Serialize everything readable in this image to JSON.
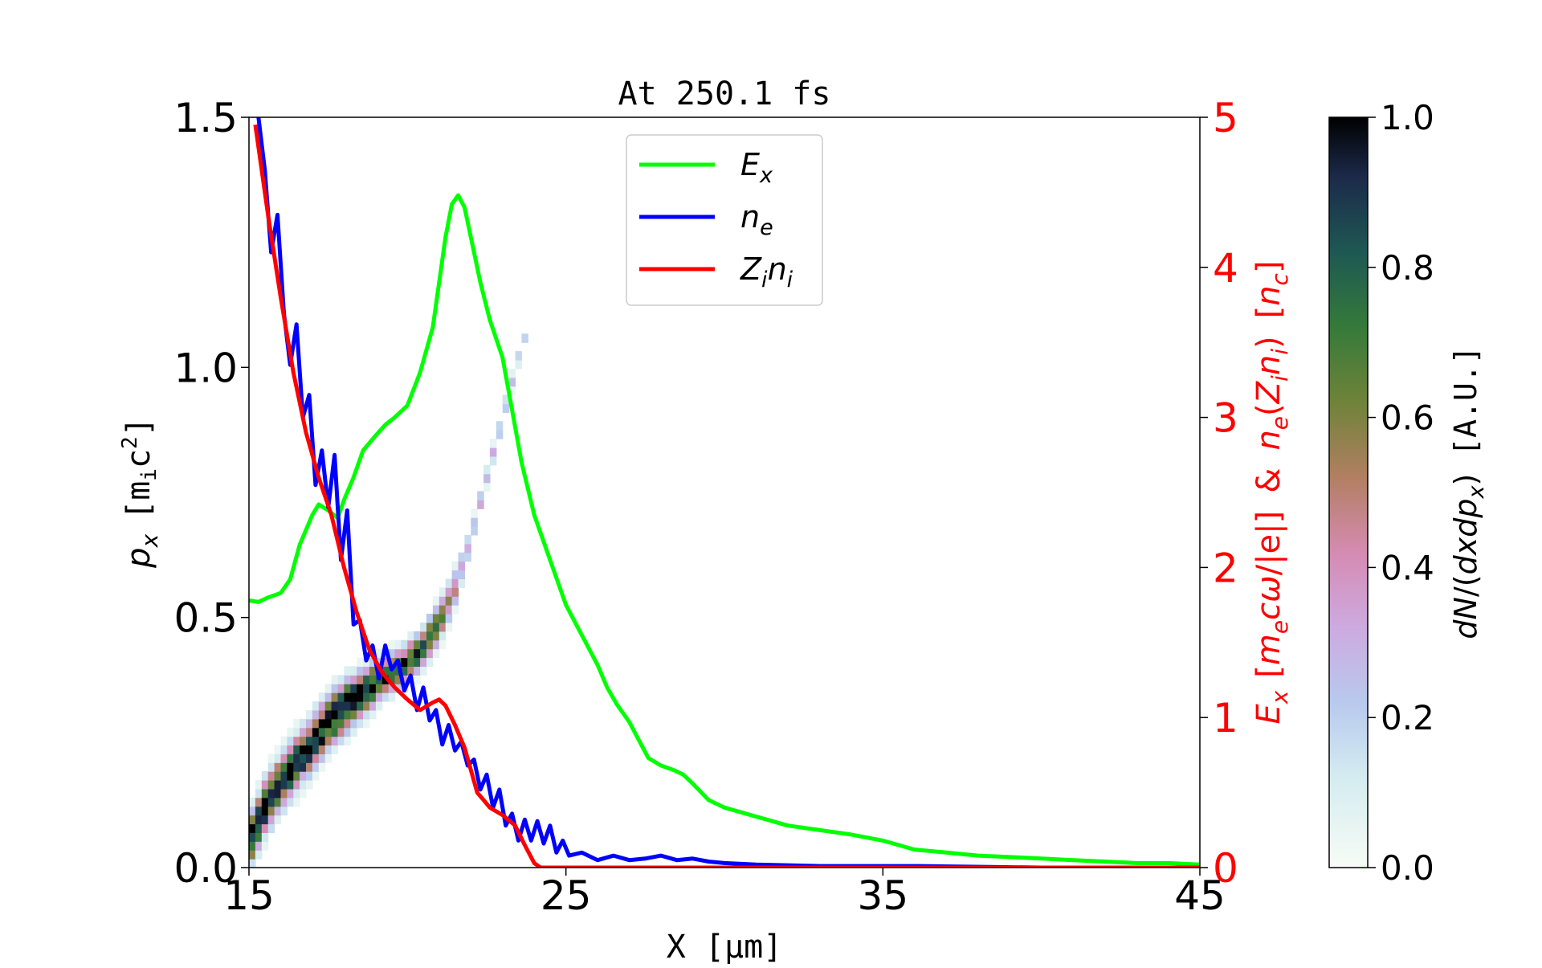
{
  "chart_data": {
    "type": "line",
    "title": "At 250.1 fs",
    "xlabel": "X [μm]",
    "ylabel_left": "p_x [m_ic^2]",
    "ylabel_right": "E_x [m_ecω/|e|] & n_e(Z_in_i) [n_c]",
    "colorbar_label": "dN/(dxdp_x) [A.U.]",
    "xlim": [
      15,
      45
    ],
    "ylim_left": [
      0,
      1.5
    ],
    "ylim_right": [
      0,
      5
    ],
    "colorbar_range": [
      0,
      1
    ],
    "x_ticks": [
      "15",
      "25",
      "35",
      "45"
    ],
    "y_ticks_left": [
      "0.0",
      "0.5",
      "1.0",
      "1.5"
    ],
    "y_ticks_right": [
      "0",
      "1",
      "2",
      "3",
      "4",
      "5"
    ],
    "colorbar_ticks": [
      "0.0",
      "0.2",
      "0.4",
      "0.6",
      "0.8",
      "1.0"
    ],
    "legend_position": "upper-center",
    "colors": {
      "Ex": "#00ff00",
      "ne": "#0000ff",
      "Zini": "#ff0000",
      "right_axis": "#ff0000"
    },
    "series": [
      {
        "key": "Ex",
        "name": "E_x",
        "axis": "right",
        "x": [
          15.0,
          15.3,
          15.6,
          16.0,
          16.3,
          16.6,
          17.0,
          17.2,
          17.5,
          17.8,
          18.0,
          18.3,
          18.6,
          19.0,
          19.3,
          19.6,
          20.0,
          20.4,
          20.8,
          21.0,
          21.2,
          21.4,
          21.6,
          21.8,
          22.0,
          22.3,
          22.6,
          23.0,
          23.3,
          23.6,
          24.0,
          24.5,
          25.0,
          25.5,
          26.0,
          26.3,
          26.6,
          27.0,
          27.3,
          27.6,
          28.0,
          28.4,
          28.7,
          29.0,
          29.5,
          30.0,
          31.0,
          32.0,
          33.0,
          34.0,
          35.0,
          36.0,
          37.0,
          38.0,
          39.0,
          40.0,
          41.0,
          42.0,
          43.0,
          44.0,
          45.0
        ],
        "y": [
          1.78,
          1.77,
          1.8,
          1.83,
          1.92,
          2.15,
          2.35,
          2.42,
          2.38,
          2.33,
          2.45,
          2.6,
          2.78,
          2.88,
          2.95,
          3.0,
          3.08,
          3.3,
          3.6,
          3.9,
          4.2,
          4.42,
          4.48,
          4.4,
          4.2,
          3.9,
          3.65,
          3.4,
          3.05,
          2.7,
          2.35,
          2.05,
          1.75,
          1.55,
          1.35,
          1.2,
          1.09,
          0.97,
          0.85,
          0.73,
          0.68,
          0.65,
          0.62,
          0.56,
          0.45,
          0.4,
          0.34,
          0.28,
          0.25,
          0.22,
          0.18,
          0.12,
          0.1,
          0.08,
          0.07,
          0.06,
          0.05,
          0.04,
          0.03,
          0.03,
          0.02
        ]
      },
      {
        "key": "ne",
        "name": "n_e",
        "axis": "right",
        "x": [
          15.3,
          15.5,
          15.7,
          15.9,
          16.1,
          16.3,
          16.5,
          16.7,
          16.9,
          17.1,
          17.3,
          17.5,
          17.7,
          17.9,
          18.1,
          18.3,
          18.5,
          18.7,
          18.9,
          19.1,
          19.3,
          19.5,
          19.7,
          19.9,
          20.1,
          20.3,
          20.5,
          20.7,
          20.9,
          21.1,
          21.3,
          21.5,
          21.7,
          21.9,
          22.1,
          22.3,
          22.5,
          22.7,
          22.9,
          23.1,
          23.3,
          23.5,
          23.7,
          23.9,
          24.1,
          24.3,
          24.5,
          24.7,
          24.9,
          25.1,
          25.5,
          26.0,
          26.5,
          27.0,
          27.5,
          28.0,
          28.5,
          29.0,
          29.5,
          30.0,
          31.0,
          33.0,
          36.0,
          40.0,
          45.0
        ],
        "y": [
          5.0,
          4.65,
          4.1,
          4.35,
          3.7,
          3.35,
          3.62,
          3.0,
          3.15,
          2.55,
          2.78,
          2.4,
          2.75,
          2.05,
          2.38,
          1.62,
          1.65,
          1.38,
          1.48,
          1.26,
          1.48,
          1.32,
          1.38,
          1.18,
          1.28,
          1.05,
          1.2,
          0.98,
          1.05,
          0.82,
          0.95,
          0.78,
          0.84,
          0.68,
          0.72,
          0.52,
          0.62,
          0.4,
          0.52,
          0.28,
          0.36,
          0.18,
          0.32,
          0.18,
          0.31,
          0.16,
          0.28,
          0.1,
          0.18,
          0.08,
          0.1,
          0.05,
          0.08,
          0.05,
          0.06,
          0.08,
          0.05,
          0.06,
          0.04,
          0.03,
          0.02,
          0.01,
          0.01,
          0.0,
          0.0
        ]
      },
      {
        "key": "Zini",
        "name": "Z_in_i",
        "axis": "right",
        "x": [
          15.2,
          15.6,
          16.0,
          16.4,
          16.8,
          17.2,
          17.6,
          18.0,
          18.4,
          18.8,
          19.2,
          19.6,
          20.0,
          20.4,
          20.8,
          21.0,
          21.2,
          21.5,
          21.8,
          22.0,
          22.2,
          22.4,
          22.6,
          23.0,
          23.4,
          23.7,
          24.0,
          24.2,
          25.0,
          30.0,
          35.0,
          40.0,
          45.0
        ],
        "y": [
          4.95,
          4.35,
          3.8,
          3.3,
          2.9,
          2.6,
          2.35,
          2.0,
          1.7,
          1.45,
          1.3,
          1.2,
          1.12,
          1.05,
          1.1,
          1.12,
          1.08,
          0.95,
          0.8,
          0.65,
          0.5,
          0.45,
          0.4,
          0.35,
          0.28,
          0.15,
          0.03,
          0.0,
          0.0,
          0.0,
          0.0,
          0.0,
          0.0
        ]
      }
    ],
    "phase_space": {
      "description_free": true,
      "ridge": [
        {
          "x": 15.0,
          "p": 0.05,
          "w": 0.05,
          "v": 1.0
        },
        {
          "x": 15.5,
          "p": 0.12,
          "w": 0.05,
          "v": 1.0
        },
        {
          "x": 16.0,
          "p": 0.17,
          "w": 0.05,
          "v": 1.0
        },
        {
          "x": 16.5,
          "p": 0.21,
          "w": 0.05,
          "v": 1.0
        },
        {
          "x": 17.0,
          "p": 0.25,
          "w": 0.05,
          "v": 1.0
        },
        {
          "x": 17.5,
          "p": 0.29,
          "w": 0.05,
          "v": 1.0
        },
        {
          "x": 18.0,
          "p": 0.32,
          "w": 0.05,
          "v": 1.0
        },
        {
          "x": 18.5,
          "p": 0.345,
          "w": 0.045,
          "v": 1.0
        },
        {
          "x": 19.0,
          "p": 0.37,
          "w": 0.04,
          "v": 1.0
        },
        {
          "x": 19.5,
          "p": 0.39,
          "w": 0.035,
          "v": 0.95
        },
        {
          "x": 20.0,
          "p": 0.41,
          "w": 0.035,
          "v": 0.9
        },
        {
          "x": 20.5,
          "p": 0.44,
          "w": 0.035,
          "v": 0.8
        },
        {
          "x": 21.0,
          "p": 0.49,
          "w": 0.04,
          "v": 0.65
        },
        {
          "x": 21.5,
          "p": 0.56,
          "w": 0.035,
          "v": 0.45
        },
        {
          "x": 22.0,
          "p": 0.66,
          "w": 0.02,
          "v": 0.35
        },
        {
          "x": 22.5,
          "p": 0.78,
          "w": 0.018,
          "v": 0.3
        },
        {
          "x": 23.0,
          "p": 0.9,
          "w": 0.018,
          "v": 0.28
        },
        {
          "x": 23.5,
          "p": 1.02,
          "w": 0.015,
          "v": 0.22
        },
        {
          "x": 23.8,
          "p": 1.08,
          "w": 0.012,
          "v": 0.15
        }
      ]
    }
  },
  "legend": {
    "items": [
      {
        "key": "Ex",
        "base": "E",
        "sub": "x"
      },
      {
        "key": "ne",
        "base": "n",
        "sub": "e"
      },
      {
        "key": "Zini",
        "base": "Z",
        "sub": "i",
        "base2": "n",
        "sub2": "i"
      }
    ]
  }
}
